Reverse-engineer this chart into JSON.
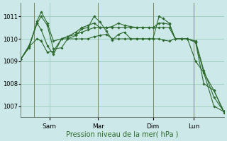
{
  "background_color": "#cce8e8",
  "grid_color": "#99ccbb",
  "line_color": "#2d6a2d",
  "xlabel": "Pression niveau de la mer( hPa )",
  "ylim": [
    1006.5,
    1011.6
  ],
  "yticks": [
    1007,
    1008,
    1009,
    1010,
    1011
  ],
  "day_labels": [
    "Sam",
    "Mar",
    "Dim",
    "Lun"
  ],
  "day_positions": [
    0.14,
    0.38,
    0.65,
    0.85
  ],
  "vline_positions": [
    0.065,
    0.38,
    0.65,
    0.85
  ],
  "series1_x": [
    0.0,
    0.04,
    0.08,
    0.1,
    0.13,
    0.16,
    0.2,
    0.23,
    0.27,
    0.3,
    0.33,
    0.36,
    0.39,
    0.42,
    0.45,
    0.48,
    0.51,
    0.54,
    0.57,
    0.6,
    0.63,
    0.65,
    0.68,
    0.7,
    0.73,
    0.76,
    0.79,
    0.82,
    0.86,
    0.9,
    0.95,
    1.0
  ],
  "series1_y": [
    1009.1,
    1009.6,
    1010.8,
    1011.2,
    1010.7,
    1009.9,
    1010.0,
    1010.1,
    1010.3,
    1010.5,
    1010.6,
    1010.7,
    1010.5,
    1010.5,
    1010.55,
    1010.7,
    1010.6,
    1010.55,
    1010.5,
    1010.5,
    1010.5,
    1010.5,
    1010.5,
    1010.5,
    1010.5,
    1010.0,
    1010.0,
    1010.0,
    1009.0,
    1008.5,
    1007.7,
    1006.7
  ],
  "series2_x": [
    0.0,
    0.04,
    0.08,
    0.1,
    0.13,
    0.16,
    0.2,
    0.23,
    0.27,
    0.3,
    0.33,
    0.36,
    0.39,
    0.42,
    0.45,
    0.48,
    0.51,
    0.54,
    0.57,
    0.6,
    0.63,
    0.65,
    0.68,
    0.7,
    0.73,
    0.76,
    0.79,
    0.82,
    0.86,
    0.9,
    0.95,
    1.0
  ],
  "series2_y": [
    1009.1,
    1009.7,
    1010.7,
    1010.4,
    1009.7,
    1009.3,
    1010.0,
    1010.1,
    1010.2,
    1010.3,
    1010.4,
    1010.5,
    1010.5,
    1010.5,
    1010.5,
    1010.5,
    1010.5,
    1010.5,
    1010.5,
    1010.5,
    1010.5,
    1010.5,
    1010.7,
    1010.7,
    1010.65,
    1010.0,
    1010.0,
    1010.0,
    1009.9,
    1008.6,
    1007.4,
    1006.75
  ],
  "series3_x": [
    0.0,
    0.04,
    0.08,
    0.1,
    0.13,
    0.16,
    0.2,
    0.23,
    0.27,
    0.3,
    0.33,
    0.36,
    0.39,
    0.42,
    0.45,
    0.48,
    0.51,
    0.54,
    0.57,
    0.6,
    0.63,
    0.65,
    0.68,
    0.7,
    0.73,
    0.76,
    0.79,
    0.82,
    0.86,
    0.9,
    0.95,
    1.0
  ],
  "series3_y": [
    1009.1,
    1009.65,
    1010.7,
    1011.0,
    1010.6,
    1009.55,
    1009.6,
    1010.0,
    1010.15,
    1010.45,
    1010.5,
    1011.0,
    1010.75,
    1010.35,
    1009.95,
    1010.2,
    1010.3,
    1010.0,
    1010.0,
    1010.0,
    1010.0,
    1010.0,
    1011.0,
    1010.9,
    1010.7,
    1010.0,
    1010.0,
    1010.0,
    1009.85,
    1008.5,
    1007.0,
    1006.75
  ],
  "series4_x": [
    0.0,
    0.04,
    0.08,
    0.1,
    0.13,
    0.16,
    0.2,
    0.23,
    0.27,
    0.3,
    0.33,
    0.36,
    0.39,
    0.42,
    0.45,
    0.48,
    0.51,
    0.54,
    0.57,
    0.6,
    0.63,
    0.65,
    0.68,
    0.7,
    0.73,
    0.76,
    0.79,
    0.82,
    0.86,
    0.9,
    0.95,
    1.0
  ],
  "series4_y": [
    1009.1,
    1009.65,
    1010.0,
    1009.9,
    1009.4,
    1009.45,
    1010.0,
    1010.0,
    1010.0,
    1010.0,
    1010.0,
    1010.1,
    1010.15,
    1010.2,
    1010.0,
    1010.0,
    1010.0,
    1010.0,
    1010.0,
    1010.0,
    1010.0,
    1010.0,
    1010.0,
    1009.95,
    1009.9,
    1010.0,
    1010.0,
    1010.0,
    1009.85,
    1008.0,
    1007.7,
    1006.75
  ]
}
